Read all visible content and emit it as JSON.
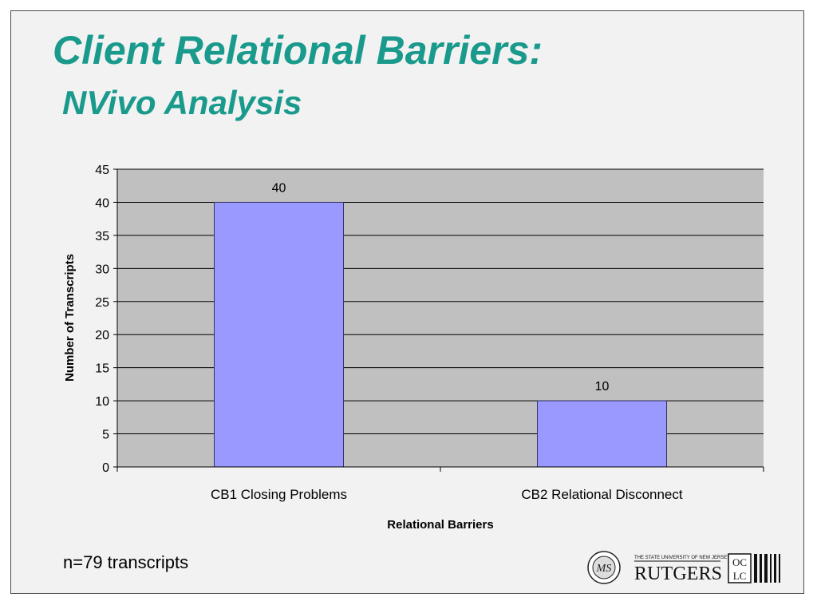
{
  "slide": {
    "title": "Client Relational Barriers:",
    "subtitle": "NVivo Analysis",
    "footnote": "n=79 transcripts"
  },
  "logos": {
    "rutgers_header": "THE STATE UNIVERSITY OF NEW JERSEY",
    "rutgers_name": "RUTGERS",
    "oclc": "OCLC"
  },
  "colors": {
    "title": "#1a9a8c",
    "plot_background": "#c0c0c0",
    "bar_fill": "#9999ff",
    "bar_stroke": "#333366",
    "gridline": "#000000"
  },
  "chart_data": {
    "type": "bar",
    "categories": [
      "CB1 Closing Problems",
      "CB2 Relational Disconnect"
    ],
    "values": [
      40,
      10
    ],
    "data_labels": [
      "40",
      "10"
    ],
    "xlabel": "Relational Barriers",
    "ylabel": "Number of Transcripts",
    "ylim": [
      0,
      45
    ],
    "yticks": [
      0,
      5,
      10,
      15,
      20,
      25,
      30,
      35,
      40,
      45
    ],
    "grid": true,
    "legend": "none"
  }
}
